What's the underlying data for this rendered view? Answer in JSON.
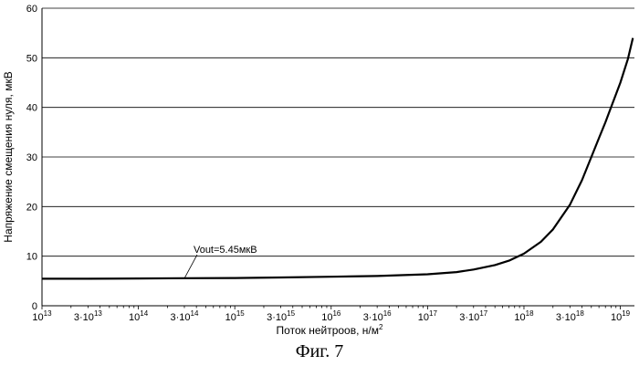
{
  "figure": {
    "caption": "Фиг. 7"
  },
  "chart_data": {
    "type": "line",
    "title": "",
    "xlabel": "Поток нейтроов, н/м",
    "xlabel_superscript": "2",
    "ylabel": "Напряжение смещения нуля, мкВ",
    "x_scale": "log",
    "xlim": [
      10000000000000.0,
      1.4e+19
    ],
    "ylim": [
      0,
      60
    ],
    "grid": {
      "y": true,
      "x": false
    },
    "y_ticks": [
      0,
      10,
      20,
      30,
      40,
      50,
      60
    ],
    "x_ticks": [
      {
        "value": 10000000000000.0,
        "coef": "",
        "exp": "13"
      },
      {
        "value": 30000000000000.0,
        "coef": "3·",
        "exp": "13"
      },
      {
        "value": 100000000000000.0,
        "coef": "",
        "exp": "14"
      },
      {
        "value": 300000000000000.0,
        "coef": "3·",
        "exp": "14"
      },
      {
        "value": 1000000000000000.0,
        "coef": "",
        "exp": "15"
      },
      {
        "value": 3000000000000000.0,
        "coef": "3·",
        "exp": "15"
      },
      {
        "value": 1e+16,
        "coef": "",
        "exp": "16"
      },
      {
        "value": 3e+16,
        "coef": "3·",
        "exp": "16"
      },
      {
        "value": 1e+17,
        "coef": "",
        "exp": "17"
      },
      {
        "value": 3e+17,
        "coef": "3·",
        "exp": "17"
      },
      {
        "value": 1e+18,
        "coef": "",
        "exp": "18"
      },
      {
        "value": 3e+18,
        "coef": "3·",
        "exp": "18"
      },
      {
        "value": 1e+19,
        "coef": "",
        "exp": "19"
      }
    ],
    "series": [
      {
        "x": [
          10000000000000.0,
          30000000000000.0,
          100000000000000.0,
          300000000000000.0,
          1000000000000000.0,
          3000000000000000.0,
          1e+16,
          3e+16,
          1e+17,
          2e+17,
          3e+17,
          5e+17,
          7e+17,
          1e+18,
          1.5e+18,
          2e+18,
          3e+18,
          4e+18,
          5e+18,
          6e+18,
          7e+18,
          8e+18,
          9e+18,
          1e+19,
          1.2e+19,
          1.35e+19
        ],
        "y": [
          5.45,
          5.45,
          5.5,
          5.55,
          5.6,
          5.7,
          5.85,
          6.0,
          6.35,
          6.8,
          7.3,
          8.2,
          9.1,
          10.5,
          12.9,
          15.4,
          20.4,
          25.3,
          30.0,
          33.8,
          37.0,
          40.0,
          42.6,
          45.0,
          49.8,
          54.0
        ]
      }
    ],
    "annotation": {
      "text": "Vout=5.45мкВ",
      "x": 300000000000000.0,
      "y": 5.5
    },
    "colors": {
      "line": "#000000",
      "grid": "#000000"
    }
  }
}
